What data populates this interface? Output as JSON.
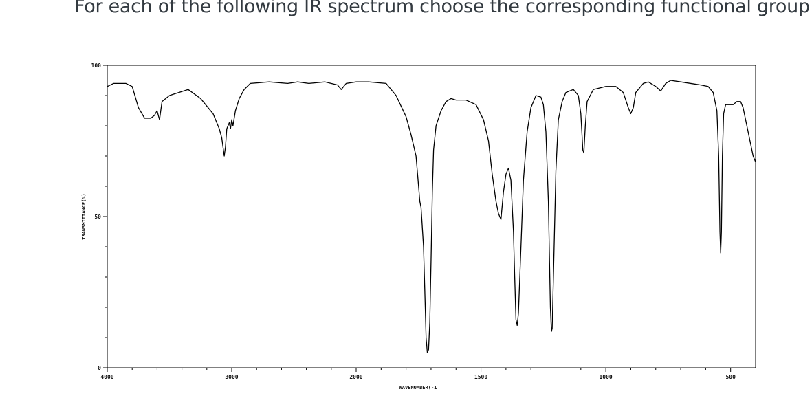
{
  "question": "For each of the following IR spectrum choose the corresponding functional group",
  "chart_data": {
    "type": "line",
    "xlabel": "WAVENUMBER(-1",
    "ylabel": "TRANSMITTANCE(%)",
    "x_reversed": true,
    "xlim": [
      4000,
      400
    ],
    "ylim": [
      0,
      100
    ],
    "x_ticks": [
      4000,
      3000,
      2000,
      1500,
      1000,
      500
    ],
    "x_tick_labels": [
      "4000",
      "3000",
      "2000",
      "1500",
      "1000",
      "500"
    ],
    "y_ticks": [
      0,
      50,
      100
    ],
    "y_tick_labels": [
      "0",
      "50",
      "100"
    ],
    "grid": false,
    "series": [
      {
        "color": "#000000",
        "points": [
          [
            4000,
            93
          ],
          [
            3950,
            94
          ],
          [
            3850,
            94
          ],
          [
            3800,
            93
          ],
          [
            3750,
            86
          ],
          [
            3700,
            82.5
          ],
          [
            3650,
            82.5
          ],
          [
            3620,
            83.5
          ],
          [
            3600,
            85
          ],
          [
            3580,
            82
          ],
          [
            3560,
            88
          ],
          [
            3500,
            90
          ],
          [
            3350,
            92
          ],
          [
            3250,
            89
          ],
          [
            3150,
            84
          ],
          [
            3100,
            79
          ],
          [
            3080,
            76
          ],
          [
            3060,
            70
          ],
          [
            3050,
            73
          ],
          [
            3040,
            79
          ],
          [
            3020,
            81
          ],
          [
            3010,
            79
          ],
          [
            3000,
            82
          ],
          [
            2990,
            80
          ],
          [
            2970,
            85
          ],
          [
            2940,
            89
          ],
          [
            2900,
            92
          ],
          [
            2850,
            94
          ],
          [
            2700,
            94.5
          ],
          [
            2550,
            94
          ],
          [
            2470,
            94.5
          ],
          [
            2380,
            94
          ],
          [
            2250,
            94.5
          ],
          [
            2150,
            93.5
          ],
          [
            2120,
            92
          ],
          [
            2080,
            94
          ],
          [
            2000,
            94.5
          ],
          [
            1950,
            94.5
          ],
          [
            1880,
            94
          ],
          [
            1840,
            90
          ],
          [
            1800,
            83
          ],
          [
            1780,
            77
          ],
          [
            1760,
            70
          ],
          [
            1750,
            60
          ],
          [
            1745,
            55
          ],
          [
            1740,
            53
          ],
          [
            1730,
            40
          ],
          [
            1725,
            25
          ],
          [
            1720,
            10
          ],
          [
            1715,
            5
          ],
          [
            1710,
            6
          ],
          [
            1705,
            15
          ],
          [
            1700,
            35
          ],
          [
            1695,
            58
          ],
          [
            1690,
            72
          ],
          [
            1680,
            80
          ],
          [
            1660,
            85
          ],
          [
            1640,
            88
          ],
          [
            1620,
            89
          ],
          [
            1600,
            88.5
          ],
          [
            1560,
            88.5
          ],
          [
            1520,
            87
          ],
          [
            1490,
            82
          ],
          [
            1470,
            75
          ],
          [
            1455,
            64
          ],
          [
            1440,
            55
          ],
          [
            1430,
            51
          ],
          [
            1420,
            49
          ],
          [
            1410,
            58
          ],
          [
            1400,
            64
          ],
          [
            1390,
            66
          ],
          [
            1380,
            62
          ],
          [
            1370,
            45
          ],
          [
            1365,
            30
          ],
          [
            1360,
            16
          ],
          [
            1355,
            14
          ],
          [
            1350,
            18
          ],
          [
            1340,
            40
          ],
          [
            1330,
            62
          ],
          [
            1315,
            78
          ],
          [
            1300,
            86
          ],
          [
            1280,
            90
          ],
          [
            1260,
            89.5
          ],
          [
            1250,
            87
          ],
          [
            1240,
            78
          ],
          [
            1230,
            55
          ],
          [
            1222,
            20
          ],
          [
            1218,
            12
          ],
          [
            1215,
            13
          ],
          [
            1210,
            30
          ],
          [
            1200,
            65
          ],
          [
            1190,
            82
          ],
          [
            1175,
            88
          ],
          [
            1160,
            91
          ],
          [
            1130,
            92
          ],
          [
            1110,
            90
          ],
          [
            1100,
            84
          ],
          [
            1092,
            72
          ],
          [
            1088,
            71
          ],
          [
            1082,
            80
          ],
          [
            1075,
            88
          ],
          [
            1050,
            92
          ],
          [
            1000,
            93
          ],
          [
            960,
            93
          ],
          [
            930,
            91
          ],
          [
            910,
            86
          ],
          [
            900,
            84
          ],
          [
            890,
            86
          ],
          [
            880,
            91
          ],
          [
            850,
            94
          ],
          [
            830,
            94.5
          ],
          [
            800,
            93
          ],
          [
            780,
            91.5
          ],
          [
            760,
            94
          ],
          [
            740,
            95
          ],
          [
            700,
            94.5
          ],
          [
            620,
            93.5
          ],
          [
            590,
            93
          ],
          [
            570,
            91
          ],
          [
            555,
            85
          ],
          [
            548,
            70
          ],
          [
            543,
            45
          ],
          [
            540,
            38
          ],
          [
            537,
            45
          ],
          [
            533,
            70
          ],
          [
            528,
            84
          ],
          [
            520,
            87
          ],
          [
            490,
            87
          ],
          [
            475,
            88
          ],
          [
            460,
            88
          ],
          [
            450,
            86
          ],
          [
            430,
            78
          ],
          [
            410,
            70
          ],
          [
            400,
            68
          ]
        ]
      }
    ]
  }
}
